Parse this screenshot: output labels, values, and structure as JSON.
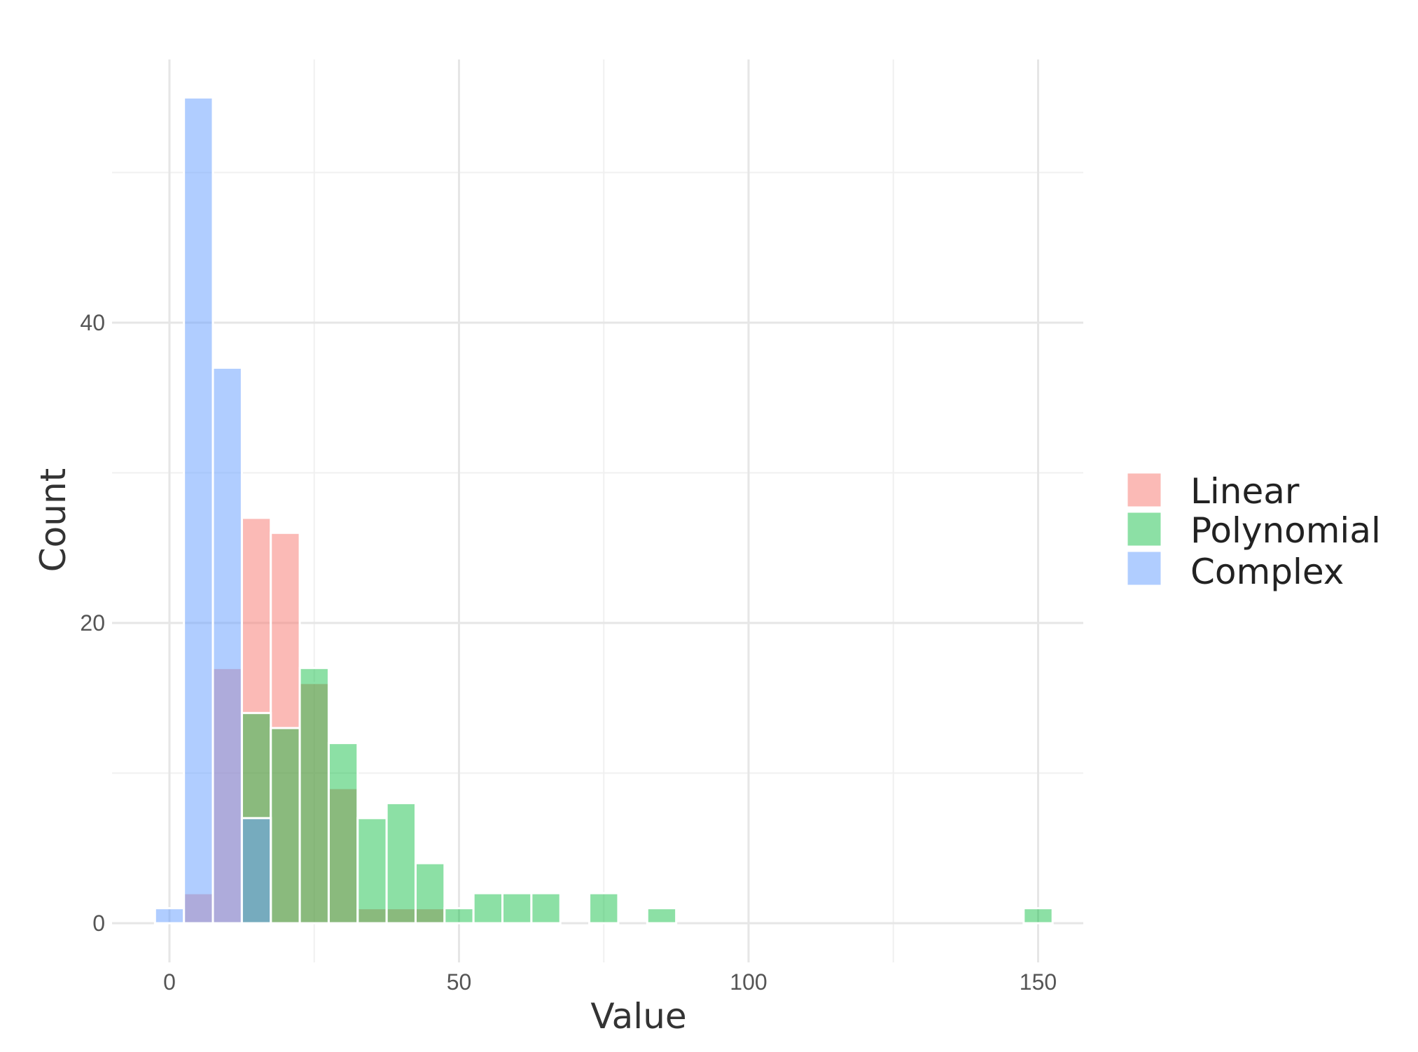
{
  "chart_data": {
    "type": "bar",
    "subtype": "overlapping-histogram",
    "title": "",
    "xlabel": "Value",
    "ylabel": "Count",
    "xlim": [
      -5,
      155
    ],
    "ylim": [
      -1.5,
      57.5
    ],
    "xticks": [
      0,
      50,
      100,
      150
    ],
    "yticks": [
      0,
      20,
      40
    ],
    "grid": true,
    "legend": {
      "placement": "right",
      "entries": [
        "Linear",
        "Polynomial",
        "Complex"
      ]
    },
    "bin_width": 5,
    "series": [
      {
        "name": "Linear",
        "color": "#F8766D",
        "opacity": 0.5,
        "bins": [
          {
            "x": 5,
            "count": 2
          },
          {
            "x": 10,
            "count": 17
          },
          {
            "x": 15,
            "count": 27
          },
          {
            "x": 20,
            "count": 26
          },
          {
            "x": 25,
            "count": 16
          },
          {
            "x": 30,
            "count": 9
          },
          {
            "x": 35,
            "count": 1
          },
          {
            "x": 40,
            "count": 1
          },
          {
            "x": 45,
            "count": 1
          }
        ]
      },
      {
        "name": "Polynomial",
        "color": "#00BA38",
        "opacity": 0.45,
        "bins": [
          {
            "x": 15,
            "count": 14
          },
          {
            "x": 20,
            "count": 13
          },
          {
            "x": 25,
            "count": 17
          },
          {
            "x": 30,
            "count": 12
          },
          {
            "x": 35,
            "count": 7
          },
          {
            "x": 40,
            "count": 8
          },
          {
            "x": 45,
            "count": 4
          },
          {
            "x": 50,
            "count": 1
          },
          {
            "x": 55,
            "count": 2
          },
          {
            "x": 60,
            "count": 2
          },
          {
            "x": 65,
            "count": 2
          },
          {
            "x": 75,
            "count": 2
          },
          {
            "x": 85,
            "count": 1
          },
          {
            "x": 150,
            "count": 1
          }
        ]
      },
      {
        "name": "Complex",
        "color": "#619CFF",
        "opacity": 0.5,
        "bins": [
          {
            "x": 0,
            "count": 1
          },
          {
            "x": 5,
            "count": 55
          },
          {
            "x": 10,
            "count": 37
          },
          {
            "x": 15,
            "count": 7
          }
        ]
      }
    ]
  }
}
